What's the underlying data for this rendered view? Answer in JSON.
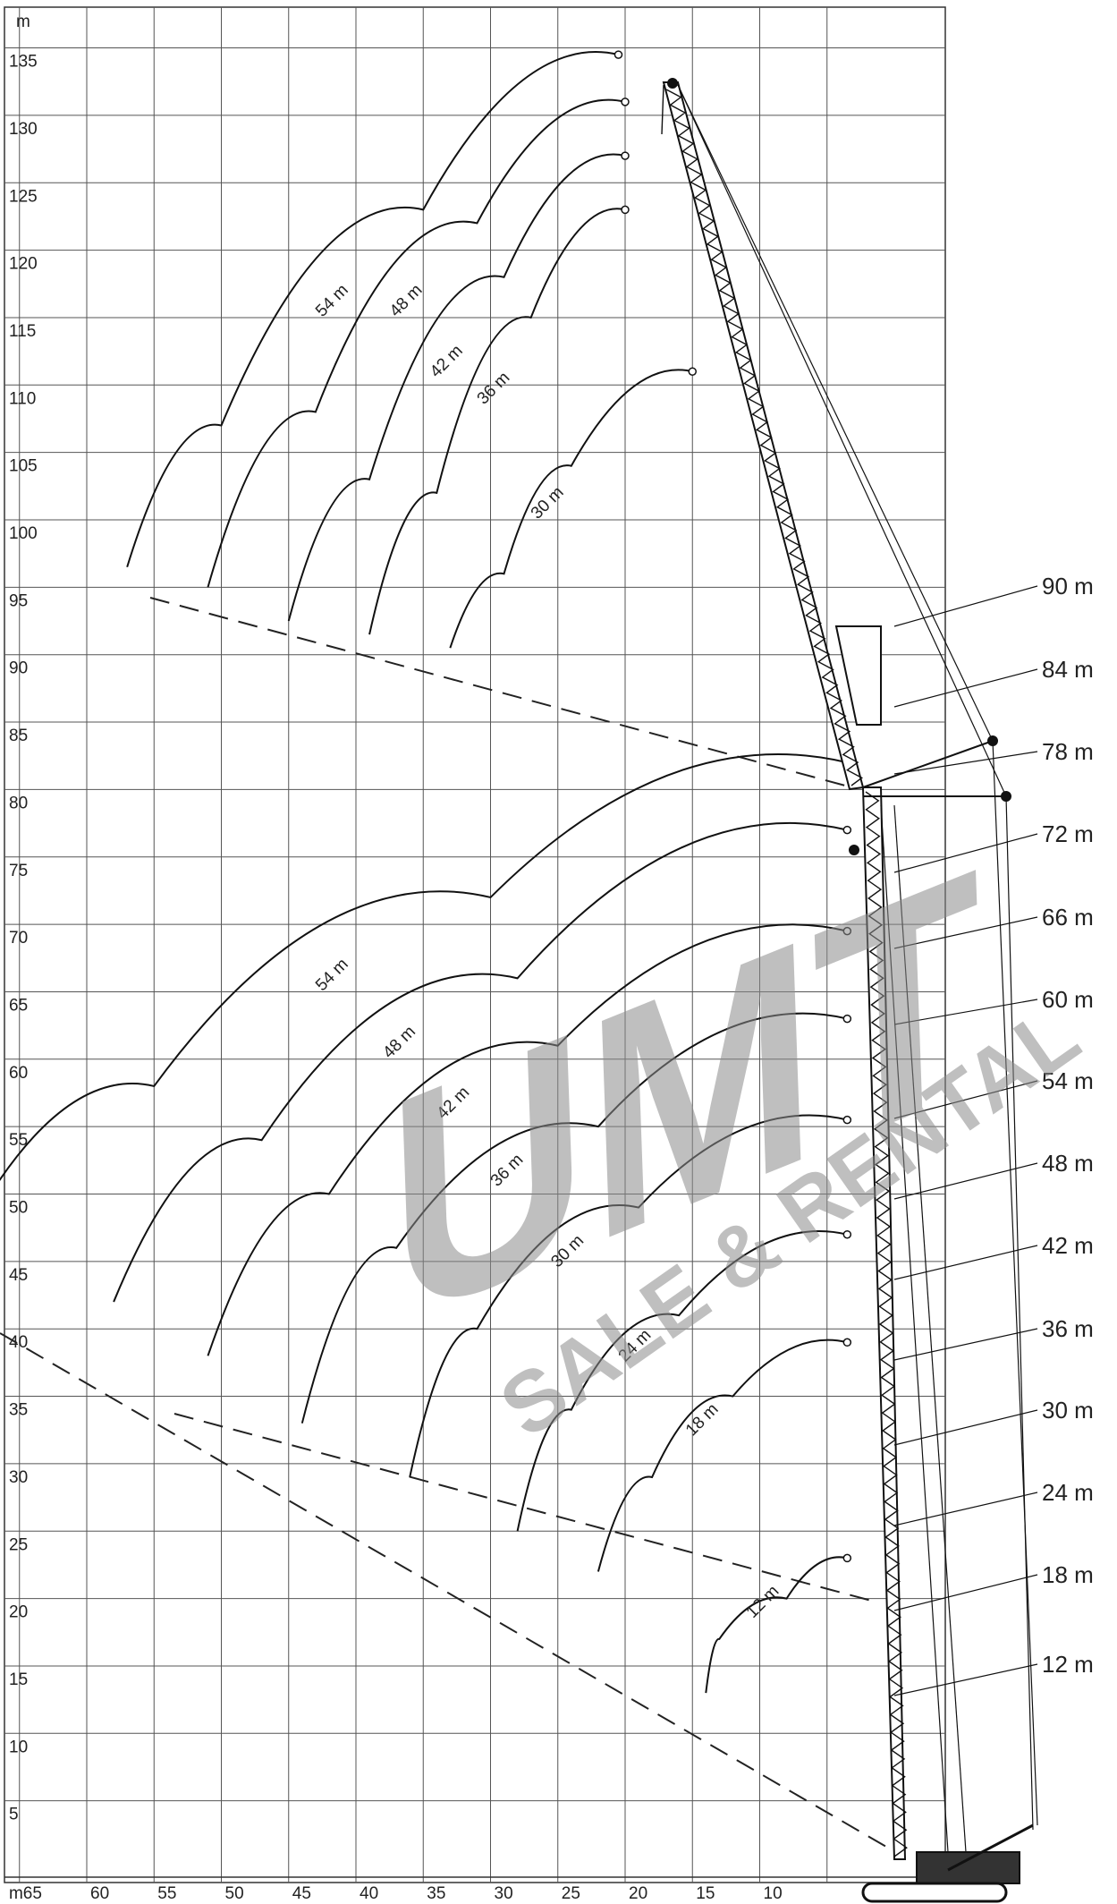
{
  "chart_data": {
    "type": "line",
    "title": "",
    "y_unit": "m",
    "x_unit": "m",
    "y_ticks": [
      5,
      10,
      15,
      20,
      25,
      30,
      35,
      40,
      45,
      50,
      55,
      60,
      65,
      70,
      75,
      80,
      85,
      90,
      95,
      100,
      105,
      110,
      115,
      120,
      125,
      130,
      135
    ],
    "x_ticks": [
      65,
      60,
      55,
      50,
      45,
      40,
      35,
      30,
      25,
      20,
      15,
      10
    ],
    "xlim": [
      70,
      0
    ],
    "ylim": [
      2,
      136
    ],
    "grid": true,
    "main_boom_labels": [
      "90 m",
      "84 m",
      "78 m",
      "72 m",
      "66 m",
      "60 m",
      "54 m",
      "48 m",
      "42 m",
      "36 m",
      "30 m",
      "24 m",
      "18 m",
      "12 m"
    ],
    "jib_curves_upper": [
      {
        "name": "54 m",
        "x": [
          20.5,
          35,
          50,
          57
        ],
        "y": [
          134.5,
          123,
          107,
          96.5
        ]
      },
      {
        "name": "48 m",
        "x": [
          20,
          31,
          43,
          51
        ],
        "y": [
          131,
          122,
          108,
          95
        ]
      },
      {
        "name": "42 m",
        "x": [
          20,
          29,
          39,
          45
        ],
        "y": [
          127,
          118,
          103,
          92.5
        ]
      },
      {
        "name": "36 m",
        "x": [
          20,
          27,
          34,
          39
        ],
        "y": [
          123,
          115,
          102,
          91.5
        ]
      },
      {
        "name": "30 m",
        "x": [
          15,
          24,
          29,
          33
        ],
        "y": [
          111,
          104,
          96,
          90.5
        ]
      }
    ],
    "jib_curves_lower": [
      {
        "name": "54 m",
        "x": [
          3.5,
          30,
          55,
          70
        ],
        "y": [
          82,
          72,
          58,
          45
        ]
      },
      {
        "name": "48 m",
        "x": [
          3.5,
          28,
          47,
          58
        ],
        "y": [
          77,
          66,
          54,
          42
        ]
      },
      {
        "name": "42 m",
        "x": [
          3.5,
          25,
          42,
          51
        ],
        "y": [
          69.5,
          61,
          50,
          38
        ]
      },
      {
        "name": "36 m",
        "x": [
          3.5,
          22,
          37,
          44
        ],
        "y": [
          63,
          55,
          46,
          33
        ]
      },
      {
        "name": "30 m",
        "x": [
          3.5,
          19,
          31,
          36
        ],
        "y": [
          55.5,
          49,
          40,
          29
        ]
      },
      {
        "name": "24 m",
        "x": [
          3.5,
          16,
          24,
          28
        ],
        "y": [
          47,
          41,
          34,
          25
        ]
      },
      {
        "name": "18 m",
        "x": [
          3.5,
          12,
          18,
          22
        ],
        "y": [
          39,
          35,
          29,
          22
        ]
      },
      {
        "name": "12 m",
        "x": [
          3.5,
          8,
          13,
          14
        ],
        "y": [
          23,
          20,
          17,
          13
        ]
      }
    ]
  },
  "watermark": {
    "main": "UMT",
    "sub": "SALE & RENTAL",
    "color": "#8c8c8c"
  }
}
